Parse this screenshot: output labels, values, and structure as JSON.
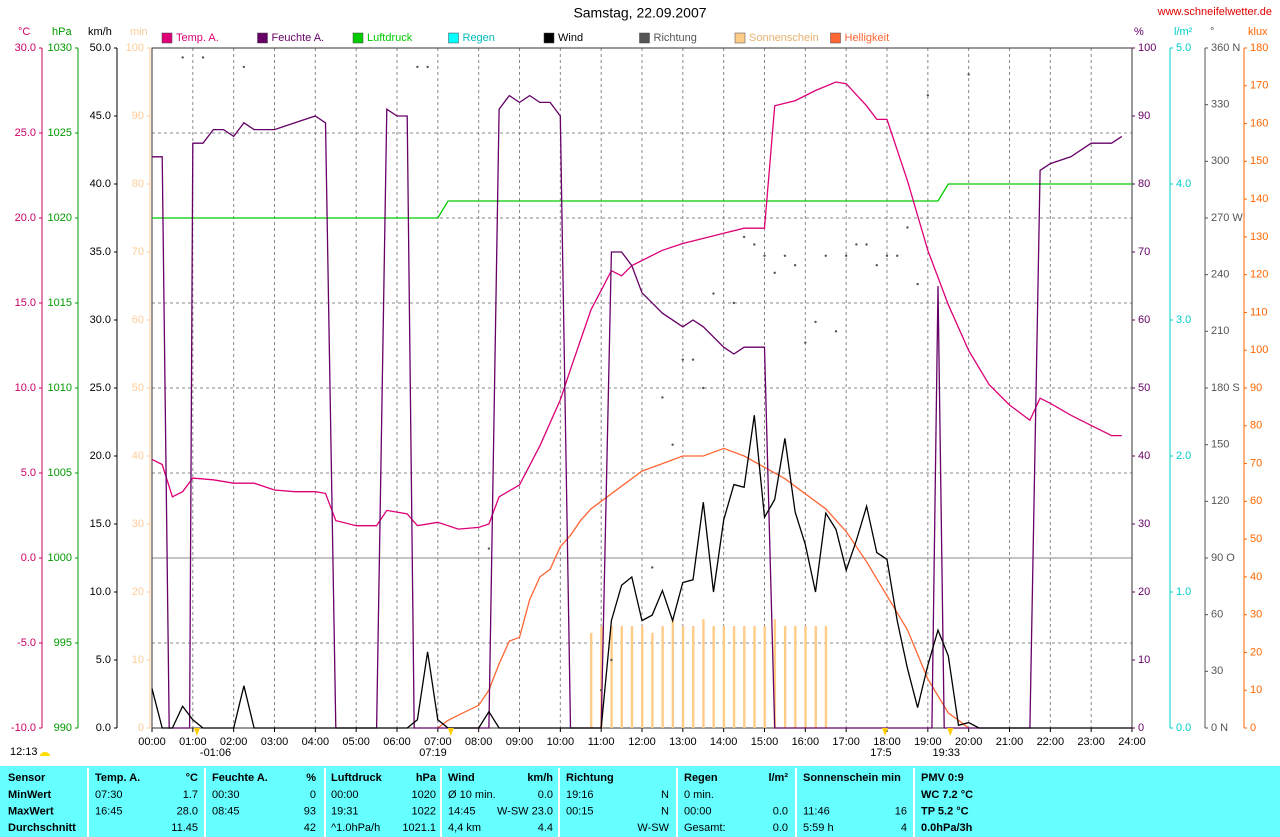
{
  "chart_data": {
    "type": "line",
    "title": "Samstag, 22.09.2007",
    "source": "www.schneifelwetter.de",
    "xlim": [
      0,
      24
    ],
    "xticks": [
      {
        "value": 0,
        "label": "00:00"
      },
      {
        "value": 1,
        "label": "01:00"
      },
      {
        "value": 2,
        "label": "02:00"
      },
      {
        "value": 3,
        "label": "03:00"
      },
      {
        "value": 4,
        "label": "04:00"
      },
      {
        "value": 5,
        "label": "05:00"
      },
      {
        "value": 6,
        "label": "06:00"
      },
      {
        "value": 7,
        "label": "07:00"
      },
      {
        "value": 8,
        "label": "08:00"
      },
      {
        "value": 9,
        "label": "09:00"
      },
      {
        "value": 10,
        "label": "10:00"
      },
      {
        "value": 11,
        "label": "11:00"
      },
      {
        "value": 12,
        "label": "12:00"
      },
      {
        "value": 13,
        "label": "13:00"
      },
      {
        "value": 14,
        "label": "14:00"
      },
      {
        "value": 15,
        "label": "15:00"
      },
      {
        "value": 16,
        "label": "16:00"
      },
      {
        "value": 17,
        "label": "17:00"
      },
      {
        "value": 18,
        "label": "18:00"
      },
      {
        "value": 19,
        "label": "19:00"
      },
      {
        "value": 20,
        "label": "20:00"
      },
      {
        "value": 21,
        "label": "21:00"
      },
      {
        "value": 22,
        "label": "22:00"
      },
      {
        "value": 23,
        "label": "23:00"
      },
      {
        "value": 24,
        "label": "24:00"
      }
    ],
    "axes": [
      {
        "unit": "°C",
        "color": "#cc0066",
        "lim": [
          -10,
          30
        ],
        "grid": true,
        "ticks": [
          {
            "value": -10,
            "label": "-10.0"
          },
          {
            "value": -5,
            "label": "-5.0"
          },
          {
            "value": 0,
            "label": "0.0"
          },
          {
            "value": 5,
            "label": "5.0"
          },
          {
            "value": 10,
            "label": "10.0"
          },
          {
            "value": 15,
            "label": "15.0"
          },
          {
            "value": 20,
            "label": "20.0"
          },
          {
            "value": 25,
            "label": "25.0"
          },
          {
            "value": 30,
            "label": "30.0"
          }
        ]
      },
      {
        "unit": "hPa",
        "color": "#009900",
        "lim": [
          990,
          1030
        ],
        "ticks": [
          990,
          995,
          1000,
          1005,
          1010,
          1015,
          1020,
          1025,
          1030
        ]
      },
      {
        "unit": "km/h",
        "color": "#000000",
        "lim": [
          0,
          50
        ],
        "ticks": [
          {
            "value": 0,
            "label": "0.0"
          },
          {
            "value": 5,
            "label": "5.0"
          },
          {
            "value": 10,
            "label": "10.0"
          },
          {
            "value": 15,
            "label": "15.0"
          },
          {
            "value": 20,
            "label": "20.0"
          },
          {
            "value": 25,
            "label": "25.0"
          },
          {
            "value": 30,
            "label": "30.0"
          },
          {
            "value": 35,
            "label": "35.0"
          },
          {
            "value": 40,
            "label": "40.0"
          },
          {
            "value": 45,
            "label": "45.0"
          },
          {
            "value": 50,
            "label": "50.0"
          }
        ]
      },
      {
        "unit": "min",
        "color": "#ffcc99",
        "lim": [
          0,
          100
        ],
        "ticks": [
          0,
          10,
          20,
          30,
          40,
          50,
          60,
          70,
          80,
          90,
          100
        ]
      },
      {
        "unit": "%",
        "color": "#660066",
        "lim": [
          0,
          100
        ],
        "ticks": [
          0,
          10,
          20,
          30,
          40,
          50,
          60,
          70,
          80,
          90,
          100
        ]
      },
      {
        "unit": "l/m²",
        "color": "#00cccc",
        "lim": [
          0,
          5
        ],
        "ticks": [
          {
            "value": 0,
            "label": "0.0"
          },
          {
            "value": 1,
            "label": "1.0"
          },
          {
            "value": 2,
            "label": "2.0"
          },
          {
            "value": 3,
            "label": "3.0"
          },
          {
            "value": 4,
            "label": "4.0"
          },
          {
            "value": 5,
            "label": "5.0"
          }
        ]
      },
      {
        "unit": "°",
        "color": "#555555",
        "lim": [
          0,
          360
        ],
        "ticks": [
          {
            "value": 0,
            "label": "0 N"
          },
          30,
          60,
          {
            "value": 90,
            "label": "90 O"
          },
          120,
          150,
          {
            "value": 180,
            "label": "180 S"
          },
          210,
          240,
          {
            "value": 270,
            "label": "270 W"
          },
          300,
          330,
          {
            "value": 360,
            "label": "360 N"
          }
        ]
      },
      {
        "unit": "klux",
        "color": "#ff6600",
        "lim": [
          0,
          180
        ],
        "ticks": [
          0,
          10,
          20,
          30,
          40,
          50,
          60,
          70,
          80,
          90,
          100,
          110,
          120,
          130,
          140,
          150,
          160,
          170,
          180
        ]
      }
    ],
    "series": [
      {
        "name": "Temp. A.",
        "color": "#dd0077",
        "axis": 0,
        "style": "line",
        "x": [
          0,
          0.25,
          0.5,
          0.75,
          1,
          1.5,
          2,
          2.5,
          3,
          3.5,
          4,
          4.25,
          4.5,
          5,
          5.5,
          5.75,
          6.25,
          6.5,
          7,
          7.5,
          8,
          8.25,
          8.5,
          9,
          9.5,
          10,
          10.25,
          10.75,
          11.25,
          11.5,
          11.75,
          12.5,
          13,
          13.5,
          14,
          14.5,
          15,
          15.25,
          15.75,
          16.25,
          16.75,
          17,
          17.5,
          17.75,
          18,
          18.5,
          19,
          19.5,
          20,
          20.5,
          21,
          21.5,
          21.75,
          22,
          22.5,
          23,
          23.5,
          23.75
        ],
        "values": [
          5.8,
          5.5,
          3.6,
          3.9,
          4.7,
          4.6,
          4.4,
          4.4,
          4.0,
          3.9,
          3.9,
          3.8,
          2.2,
          1.9,
          1.9,
          2.8,
          2.6,
          1.9,
          2.1,
          1.7,
          1.8,
          2.0,
          3.6,
          4.3,
          6.6,
          9.3,
          11.1,
          14.6,
          16.9,
          16.6,
          17.2,
          18.1,
          18.5,
          18.8,
          19.1,
          19.4,
          19.4,
          26.6,
          26.9,
          27.5,
          28.0,
          27.9,
          26.6,
          25.8,
          25.8,
          22.2,
          18.1,
          14.9,
          12.2,
          10.2,
          9.0,
          8.1,
          9.4,
          9.1,
          8.4,
          7.8,
          7.2,
          7.2
        ]
      },
      {
        "name": "Feuchte A.",
        "color": "#660066",
        "axis": 4,
        "style": "line",
        "x": [
          0,
          0.25,
          0.42,
          0.5,
          0.92,
          1,
          1.25,
          1.5,
          1.75,
          2,
          2.25,
          2.5,
          3,
          3.5,
          4,
          4.25,
          4.5,
          5.5,
          5.75,
          6,
          6.25,
          6.42,
          8.25,
          8.5,
          8.75,
          9,
          9.25,
          9.5,
          9.75,
          10,
          10.25,
          11,
          11.25,
          11.5,
          11.75,
          12,
          12.5,
          13,
          13.25,
          13.5,
          14,
          14.25,
          14.5,
          15,
          15.25,
          19.1,
          19.25,
          19.4,
          21.5,
          21.75,
          22,
          22.5,
          23,
          23.5,
          23.75
        ],
        "values": [
          84,
          84,
          0,
          0,
          0,
          86,
          86,
          88,
          88,
          87,
          89,
          88,
          88,
          89,
          90,
          89,
          0,
          0,
          91,
          90,
          90,
          0,
          0,
          91,
          93,
          92,
          93,
          92,
          92,
          90,
          0,
          0,
          70,
          70,
          68,
          64,
          61,
          59,
          60,
          59,
          56,
          55,
          56,
          56,
          0,
          0,
          65,
          0,
          0,
          82,
          83,
          84,
          86,
          86,
          87
        ]
      },
      {
        "name": "Luftdruck",
        "color": "#00cc00",
        "axis": 1,
        "style": "line",
        "x": [
          0,
          7,
          7.25,
          19.25,
          19.5,
          24
        ],
        "values": [
          1020,
          1020,
          1021,
          1021,
          1022,
          1022
        ]
      },
      {
        "name": "Regen",
        "color": "#00ffff",
        "axis": 5,
        "style": "line",
        "x": [],
        "values": []
      },
      {
        "name": "Wind",
        "color": "#000000",
        "axis": 2,
        "style": "line",
        "x": [
          0,
          0.25,
          0.5,
          0.75,
          1,
          1.25,
          2,
          2.25,
          2.5,
          6.25,
          6.5,
          6.75,
          7,
          7.25,
          8,
          8.25,
          8.5,
          11,
          11.25,
          11.5,
          11.75,
          12,
          12.25,
          12.5,
          12.75,
          13,
          13.25,
          13.5,
          13.75,
          14,
          14.25,
          14.5,
          14.75,
          15,
          15.25,
          15.5,
          15.75,
          16,
          16.25,
          16.5,
          16.75,
          17,
          17.25,
          17.5,
          17.75,
          18,
          18.25,
          18.5,
          18.75,
          19,
          19.25,
          19.5,
          19.75,
          20,
          20.25,
          24
        ],
        "values": [
          2.9,
          0,
          0,
          1.6,
          0.6,
          0,
          0,
          3.1,
          0,
          0,
          0.6,
          5.6,
          0.6,
          0,
          0,
          1.2,
          0,
          0,
          7.9,
          10.5,
          11.1,
          7.9,
          8.3,
          10.1,
          7.9,
          10.7,
          10.9,
          16.6,
          10.0,
          15.3,
          17.9,
          17.7,
          23.0,
          15.5,
          16.8,
          21.3,
          15.9,
          13.5,
          10.0,
          15.8,
          14.6,
          11.6,
          13.8,
          16.3,
          12.9,
          12.4,
          7.9,
          4.4,
          1.5,
          4.6,
          7.2,
          5.3,
          0.2,
          0.4,
          0,
          0
        ]
      },
      {
        "name": "Richtung",
        "color": "#555555",
        "axis": 6,
        "style": "dots",
        "x": [
          0.75,
          1.25,
          2.25,
          6.5,
          6.75,
          8.25,
          11,
          11.25,
          12.25,
          12.5,
          12.75,
          13,
          13.25,
          13.5,
          13.75,
          14.25,
          14.5,
          14.75,
          15,
          15.25,
          15.5,
          15.75,
          16,
          16.25,
          16.5,
          16.75,
          17,
          17.25,
          17.5,
          17.75,
          18,
          18.25,
          18.5,
          18.75,
          19,
          20
        ],
        "values": [
          355,
          355,
          350,
          350,
          350,
          95,
          20,
          36,
          85,
          175,
          150,
          195,
          195,
          180,
          230,
          225,
          260,
          256,
          250,
          241,
          250,
          245,
          204,
          215,
          250,
          210,
          250,
          256,
          256,
          245,
          250,
          250,
          265,
          235,
          335,
          346
        ]
      },
      {
        "name": "Sonnenschein",
        "color": "#ffcc88",
        "axis": 3,
        "style": "bars",
        "x": [
          10.75,
          11,
          11.25,
          11.5,
          11.75,
          12,
          12.25,
          12.5,
          12.75,
          13,
          13.25,
          13.5,
          13.75,
          14,
          14.25,
          14.5,
          14.75,
          15,
          15.25,
          15.5,
          15.75,
          16,
          16.25,
          16.5
        ],
        "values": [
          14,
          15,
          15,
          15,
          15,
          15,
          14,
          15,
          16,
          15,
          15,
          16,
          15,
          15,
          15,
          15,
          15,
          15,
          16,
          15,
          15,
          15,
          15,
          15
        ]
      },
      {
        "name": "Helligkeit",
        "color": "#ff6633",
        "axis": 7,
        "style": "line",
        "x": [
          7,
          7.25,
          7.5,
          8,
          8.25,
          8.5,
          8.75,
          9,
          9.25,
          9.5,
          9.75,
          10,
          10.25,
          10.5,
          10.75,
          11,
          11.5,
          12,
          12.5,
          13,
          13.5,
          14,
          14.5,
          15,
          15.5,
          16,
          16.5,
          17,
          17.5,
          18,
          18.5,
          19,
          19.5,
          19.75,
          20
        ],
        "values": [
          0,
          2,
          3.4,
          6,
          10,
          17,
          23,
          24,
          34,
          40,
          42,
          48,
          51,
          55,
          58,
          60,
          64,
          68,
          70,
          72,
          72,
          74,
          72,
          69,
          66,
          62,
          58,
          52,
          44,
          35,
          26,
          13,
          4,
          2,
          0
        ]
      }
    ],
    "moon_label": "12:13",
    "events": [
      {
        "x": 1.1,
        "label": "-01:06"
      },
      {
        "x": 7.317,
        "label": "07:19"
      },
      {
        "x": 17.95,
        "label": "17:5"
      },
      {
        "x": 19.55,
        "label": "19:33"
      }
    ]
  },
  "table": {
    "header": [
      {
        "l": "Sensor"
      },
      {
        "l": "Temp. A.",
        "r": "°C"
      },
      {
        "l": "Feuchte A.",
        "r": "%"
      },
      {
        "l": "Luftdruck",
        "r": "hPa"
      },
      {
        "l": "Wind",
        "r": "km/h"
      },
      {
        "l": "Richtung"
      },
      {
        "l": "Regen",
        "r": "l/m²"
      },
      {
        "l": "Sonnenschein min"
      },
      {
        "l": "PMV 0:9"
      }
    ],
    "rows": [
      [
        {
          "l": "MinWert"
        },
        {
          "l": "07:30",
          "r": "1.7"
        },
        {
          "l": "00:30",
          "r": "0"
        },
        {
          "l": "00:00",
          "r": "1020"
        },
        {
          "l": "Ø 10 min.",
          "r": "0.0"
        },
        {
          "l": "19:16",
          "r": "N"
        },
        {
          "l": "0 min."
        },
        {},
        {
          "l": "WC 7.2 °C"
        }
      ],
      [
        {
          "l": "MaxWert"
        },
        {
          "l": "16:45",
          "r": "28.0"
        },
        {
          "l": "08:45",
          "r": "93"
        },
        {
          "l": "19:31",
          "r": "1022"
        },
        {
          "l": "14:45",
          "r": "W-SW 23.0"
        },
        {
          "l": "00:15",
          "r": "N"
        },
        {
          "l": "00:00",
          "r": "0.0"
        },
        {
          "l": "11:46",
          "r": "16"
        },
        {
          "l": "TP 5.2 °C"
        }
      ],
      [
        {
          "l": "Durchschnitt"
        },
        {
          "r": "11.45"
        },
        {
          "r": "42"
        },
        {
          "l": "^1.0hPa/h",
          "r": "1021.1"
        },
        {
          "l": "4,4 km",
          "r": "4.4"
        },
        {
          "r": "W-SW"
        },
        {
          "l": "Gesamt:",
          "r": "0.0"
        },
        {
          "l": "5:59 h",
          "r": "4"
        },
        {
          "l": "0.0hPa/3h"
        }
      ]
    ]
  }
}
